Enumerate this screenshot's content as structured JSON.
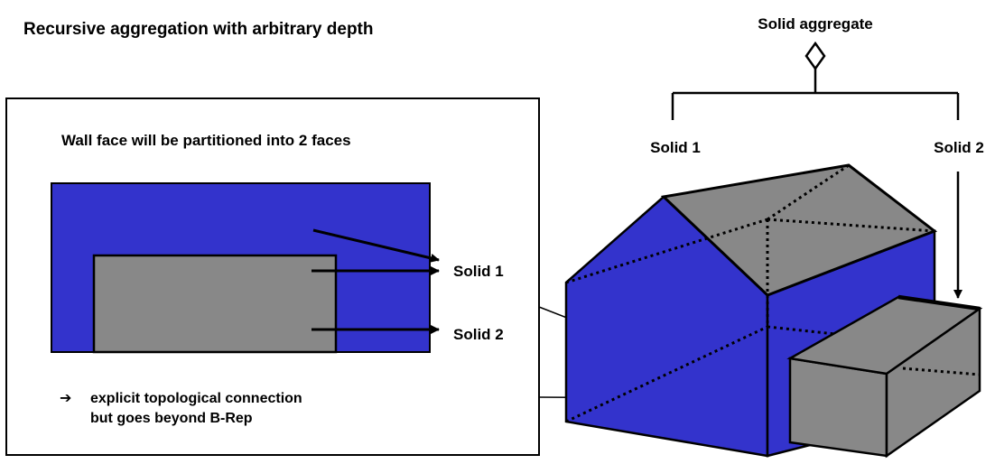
{
  "title": "Recursive aggregation with arbitrary depth",
  "aggregate": {
    "label": "Solid aggregate",
    "children": [
      "Solid 1",
      "Solid 2"
    ]
  },
  "inset": {
    "caption": "Wall face will be partitioned into 2 faces",
    "arrow_labels": [
      "Solid 1",
      "Solid 2"
    ],
    "note_bullet": "➔",
    "note_lines": [
      "explicit topological connection",
      "but goes beyond B-Rep"
    ]
  },
  "colors": {
    "blue": "#3333CC",
    "gray": "#888888",
    "line": "#000000",
    "background": "#FFFFFF"
  }
}
